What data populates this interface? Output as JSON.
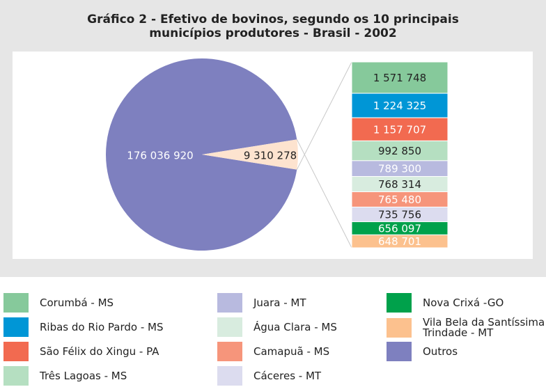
{
  "chart_data": {
    "type": "pie",
    "title": [
      "Gráfico 2 - Efetivo de bovinos, segundo os 10 principais",
      "municípios produtores - Brasil - 2002"
    ],
    "categories": [
      "Outros",
      null
    ],
    "values": [
      176036920,
      9310278
    ],
    "value_labels": [
      "176 036 920",
      "9 310 278"
    ],
    "colors": [
      "#7e80bf",
      "#fde3cf"
    ],
    "breakdown": {
      "categories": [
        "Corumbá - MS",
        "Ribas do Rio Pardo - MS",
        "São Félix do Xingu - PA",
        "Três Lagoas - MS",
        "Juara - MT",
        "Água Clara - MS",
        "Camapuã - MS",
        "Cáceres - MT",
        "Nova Crixá -GO",
        "Vila Bela da Santíssima Trindade - MT"
      ],
      "values": [
        1571748,
        1224325,
        1157707,
        992850,
        789300,
        768314,
        765480,
        735756,
        656097,
        648701
      ],
      "value_labels": [
        "1 571 748",
        "1 224 325",
        "1 157 707",
        "992 850",
        "789 300",
        "768 314",
        "765 480",
        "735 756",
        "656 097",
        "648 701"
      ],
      "colors": [
        "#86c99b",
        "#0096d6",
        "#f26a50",
        "#b5dfc1",
        "#b8badf",
        "#d8ecdf",
        "#f6957b",
        "#dcdcef",
        "#00a14b",
        "#fcc18e"
      ]
    }
  }
}
